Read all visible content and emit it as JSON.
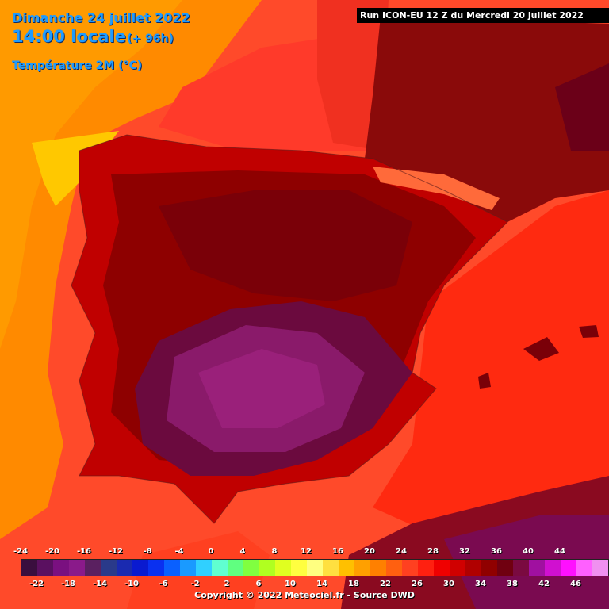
{
  "header": {
    "date": "Dimanche 24 juillet 2022",
    "time": "14:00 locale",
    "offset": "(+ 96h)",
    "variable": "Température 2M (°C)"
  },
  "run_label": "Run ICON-EU 12 Z du Mercredi 20 juillet 2022",
  "legend": {
    "top_ticks": [
      "-24",
      "-20",
      "-16",
      "-12",
      "-8",
      "-4",
      "0",
      "4",
      "8",
      "12",
      "16",
      "20",
      "24",
      "28",
      "32",
      "36",
      "40",
      "44"
    ],
    "bottom_ticks": [
      "-22",
      "-18",
      "-14",
      "-10",
      "-6",
      "-2",
      "2",
      "6",
      "10",
      "14",
      "18",
      "22",
      "26",
      "30",
      "34",
      "38",
      "42",
      "46"
    ],
    "colors": [
      "#3a0e3e",
      "#5a1060",
      "#7a1080",
      "#8a1a8a",
      "#5a2060",
      "#2a3a8a",
      "#1a2ab0",
      "#0a1ad0",
      "#0a30f0",
      "#0a60ff",
      "#1a9aff",
      "#30d0ff",
      "#60ffd0",
      "#60ff80",
      "#80ff40",
      "#b0ff20",
      "#e0ff20",
      "#ffff40",
      "#ffff80",
      "#ffe040",
      "#ffc000",
      "#ffa000",
      "#ff8000",
      "#ff6010",
      "#ff4020",
      "#ff2010",
      "#f00000",
      "#d00000",
      "#b00000",
      "#900000",
      "#700010",
      "#7a0a40",
      "#a010a0",
      "#d010d0",
      "#ff10ff",
      "#ff60ff",
      "#f090f0"
    ]
  },
  "copyright": "Copyright © 2022 Meteociel.fr - Source DWD",
  "colors": {
    "ocean_warm": "#ff4a2a",
    "ocean_cool": "#ff9a00",
    "coast_yellow": "#ffc800",
    "land_hot": "#9a0000",
    "land_hotter": "#6b0018",
    "land_extreme": "#8a1a6a",
    "header_blue": "#1e9bff"
  }
}
